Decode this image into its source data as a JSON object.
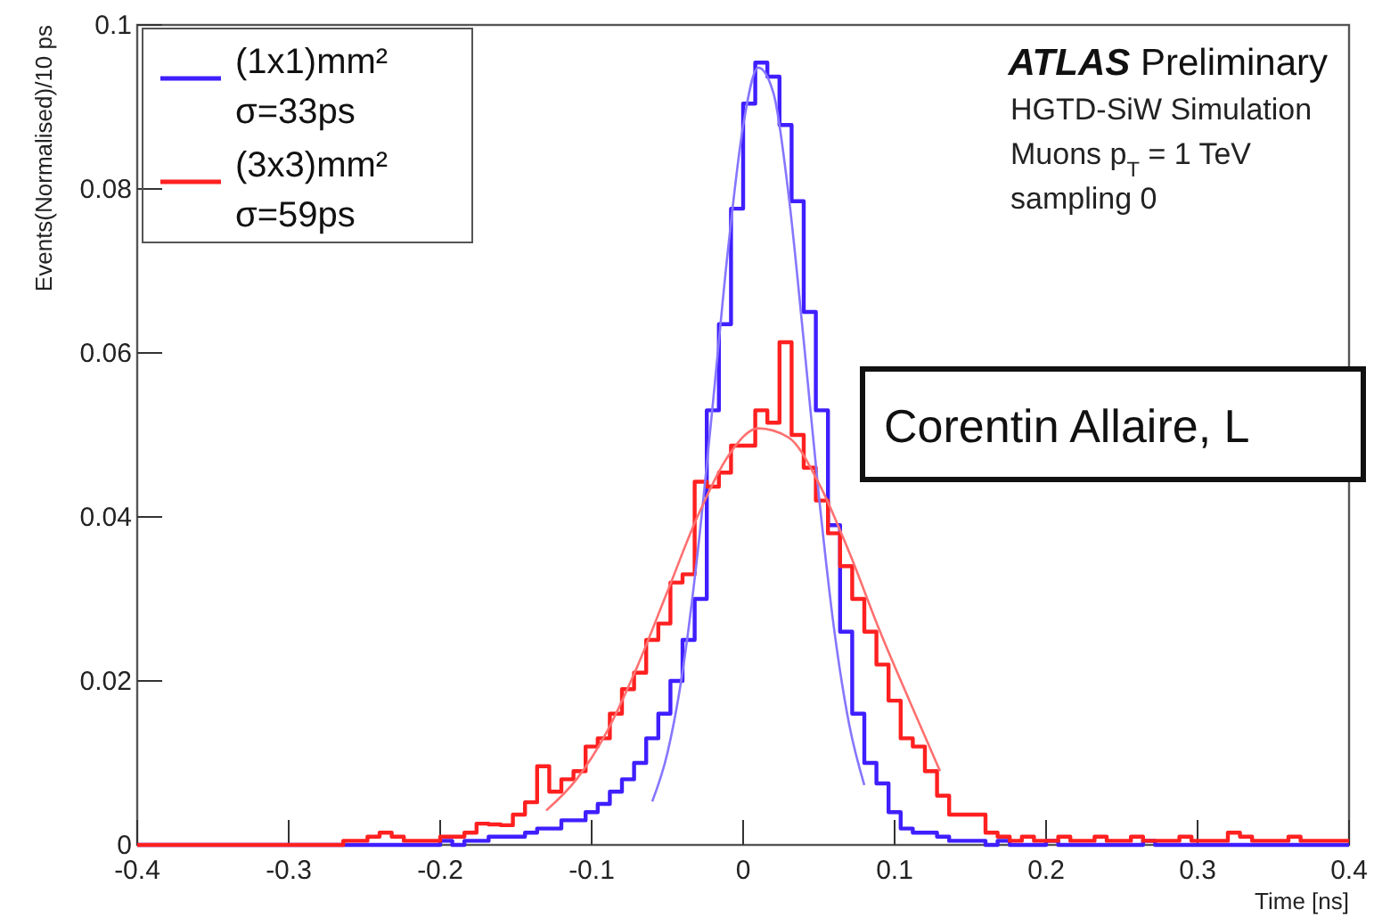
{
  "chart_data": {
    "type": "histogram",
    "xlabel": "Time [ns]",
    "ylabel": "Events(Normalised)/10 ps",
    "annotations": [
      "ATLAS Preliminary",
      "HGTD-SiW Simulation",
      "Muons p$_{T}$ = 1 TeV",
      "sampling 0",
      "Corentin Allaire, L"
    ],
    "bins": [
      -0.4,
      -0.392,
      -0.384,
      -0.376,
      -0.368,
      -0.36,
      -0.352,
      -0.344,
      -0.336,
      -0.328,
      -0.32,
      -0.312,
      -0.304,
      -0.296,
      -0.288,
      -0.28,
      -0.272,
      -0.264,
      -0.256,
      -0.248,
      -0.24,
      -0.232,
      -0.224,
      -0.216,
      -0.208,
      -0.2,
      -0.192,
      -0.184,
      -0.176,
      -0.168,
      -0.16,
      -0.152,
      -0.144,
      -0.136,
      -0.128,
      -0.12,
      -0.112,
      -0.104,
      -0.096,
      -0.088,
      -0.08,
      -0.072,
      -0.064,
      -0.056,
      -0.048,
      -0.04,
      -0.032,
      -0.024,
      -0.016,
      -0.008,
      0,
      0.008,
      0.016,
      0.024,
      0.032,
      0.04,
      0.048,
      0.056,
      0.064,
      0.072,
      0.08,
      0.088,
      0.096,
      0.104,
      0.112,
      0.12,
      0.128,
      0.136,
      0.144,
      0.152,
      0.16,
      0.168,
      0.176,
      0.184,
      0.192,
      0.2,
      0.208,
      0.216,
      0.224,
      0.232,
      0.24,
      0.248,
      0.256,
      0.264,
      0.272,
      0.28,
      0.288,
      0.296,
      0.304,
      0.312,
      0.32,
      0.328,
      0.336,
      0.344,
      0.352,
      0.36,
      0.368,
      0.376,
      0.384,
      0.392,
      0.4
    ],
    "series": [
      {
        "name": "(1x1)mm² σ=33ps",
        "color": "#3f1fff",
        "values": [
          0,
          0,
          0,
          0,
          0,
          0,
          0,
          0,
          0,
          0,
          0,
          0,
          0,
          0,
          0,
          0,
          0,
          0,
          0,
          0,
          0,
          0,
          0,
          0,
          0,
          0.0005,
          0,
          0.0005,
          0.0005,
          0.001,
          0.001,
          0.001,
          0.0015,
          0.002,
          0.002,
          0.003,
          0.003,
          0.004,
          0.005,
          0.0065,
          0.008,
          0.01,
          0.013,
          0.016,
          0.02,
          0.025,
          0.03,
          0.053,
          0.0635,
          0.0776,
          0.0904,
          0.0954,
          0.0937,
          0.0878,
          0.0785,
          0.065,
          0.053,
          0.039,
          0.026,
          0.016,
          0.01,
          0.0075,
          0.004,
          0.002,
          0.0015,
          0.0015,
          0.001,
          0.0005,
          0.0005,
          0.0005,
          0,
          0.0005,
          0,
          0,
          0,
          0.0005,
          0,
          0,
          0,
          0,
          0,
          0,
          0,
          0.0005,
          0,
          0,
          0,
          0,
          0,
          0,
          0,
          0,
          0,
          0,
          0,
          0,
          0,
          0,
          0,
          0
        ]
      },
      {
        "name": "(3x3)mm² σ=59ps",
        "color": "#ff2020",
        "values": [
          0,
          0,
          0,
          0,
          0,
          0,
          0,
          0,
          0,
          0,
          0,
          0,
          0,
          0,
          0,
          0,
          0,
          0.0005,
          0.0005,
          0.001,
          0.0015,
          0.001,
          0.0005,
          0.0005,
          0.0005,
          0.001,
          0.001,
          0.0015,
          0.0026,
          0.0025,
          0.0024,
          0.0037,
          0.0052,
          0.0096,
          0.0065,
          0.008,
          0.009,
          0.012,
          0.013,
          0.016,
          0.019,
          0.021,
          0.025,
          0.027,
          0.032,
          0.033,
          0.0443,
          0.0437,
          0.0454,
          0.0487,
          0.0487,
          0.053,
          0.0515,
          0.0613,
          0.05,
          0.046,
          0.042,
          0.038,
          0.034,
          0.03,
          0.026,
          0.022,
          0.0176,
          0.013,
          0.012,
          0.009,
          0.006,
          0.0037,
          0.0037,
          0.0037,
          0.0015,
          0.001,
          0.0005,
          0.001,
          0.0005,
          0.0005,
          0.001,
          0.0005,
          0.0005,
          0.001,
          0.0005,
          0.0005,
          0.001,
          0.0005,
          0.0005,
          0.0005,
          0.001,
          0.0005,
          0.0005,
          0.0005,
          0.0015,
          0.001,
          0.0005,
          0.0005,
          0.0005,
          0.001,
          0.0005,
          0.0005,
          0.0005,
          0.0005
        ]
      },
      {
        "type": "line",
        "color": "#8576ff",
        "x": [
          -0.06,
          -0.05,
          -0.04,
          -0.03,
          -0.02,
          -0.01,
          0,
          0.01,
          0.02,
          0.03,
          0.04,
          0.05,
          0.06,
          0.07,
          0.08
        ],
        "values": [
          0.0053,
          0.0112,
          0.0211,
          0.0357,
          0.0538,
          0.0726,
          0.0877,
          0.0948,
          0.0917,
          0.0793,
          0.0615,
          0.0426,
          0.0264,
          0.0147,
          0.0073
        ]
      },
      {
        "type": "line",
        "color": "#ff7070",
        "x": [
          -0.13,
          -0.11,
          -0.09,
          -0.07,
          -0.05,
          -0.03,
          -0.01,
          0.01,
          0.03,
          0.05,
          0.07,
          0.09,
          0.11,
          0.13
        ],
        "values": [
          0.0042,
          0.008,
          0.0138,
          0.0217,
          0.0309,
          0.0401,
          0.0474,
          0.0508,
          0.0497,
          0.0441,
          0.0357,
          0.0262,
          0.0175,
          0.009
        ]
      }
    ],
    "xlim": [
      -0.4,
      0.4
    ],
    "xticks": [
      -0.4,
      -0.3,
      -0.2,
      -0.1,
      0,
      0.1,
      0.2,
      0.3,
      0.4
    ],
    "ylim": [
      0,
      0.1
    ],
    "yticks": [
      0,
      0.02,
      0.04,
      0.06,
      0.08,
      0.1
    ],
    "legend": "top left"
  }
}
